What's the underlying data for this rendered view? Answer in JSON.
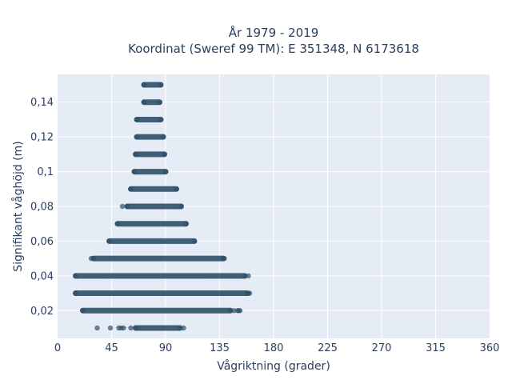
{
  "chart_data": {
    "type": "scatter",
    "title_line1": "År 1979 - 2019",
    "title_line2": "Koordinat (Sweref 99 TM): E 351348, N 6173618",
    "xlabel": "Vågriktning (grader)",
    "ylabel": "Signifikant våghöjd (m)",
    "xlim": [
      0,
      360
    ],
    "ylim": [
      0.004,
      0.156
    ],
    "x_ticks": [
      0,
      45,
      90,
      135,
      180,
      225,
      270,
      315,
      360
    ],
    "x_tick_labels": [
      "0",
      "45",
      "90",
      "135",
      "180",
      "225",
      "270",
      "315",
      "360"
    ],
    "y_ticks": [
      0.02,
      0.04,
      0.06,
      0.08,
      0.1,
      0.12,
      0.14
    ],
    "y_tick_labels": [
      "0,02",
      "0,04",
      "0,06",
      "0,08",
      "0,1",
      "0,12",
      "0,14"
    ],
    "grid": true,
    "plot_bg_color": "#e5ecf6",
    "marker_color": "#2e5068",
    "rows": [
      {
        "y": 0.01,
        "x_min": 65,
        "x_max": 102,
        "outliers": [
          33,
          44,
          51,
          53,
          55,
          61,
          105
        ]
      },
      {
        "y": 0.02,
        "x_min": 21,
        "x_max": 144,
        "outliers": [
          147,
          150,
          151,
          152
        ]
      },
      {
        "y": 0.03,
        "x_min": 15,
        "x_max": 158,
        "outliers": [
          159,
          160
        ]
      },
      {
        "y": 0.04,
        "x_min": 15,
        "x_max": 156,
        "outliers": [
          159
        ]
      },
      {
        "y": 0.05,
        "x_min": 30,
        "x_max": 138,
        "outliers": [
          28,
          139
        ]
      },
      {
        "y": 0.06,
        "x_min": 43,
        "x_max": 114,
        "outliers": []
      },
      {
        "y": 0.07,
        "x_min": 50,
        "x_max": 107,
        "outliers": []
      },
      {
        "y": 0.08,
        "x_min": 58,
        "x_max": 103,
        "outliers": [
          54
        ]
      },
      {
        "y": 0.09,
        "x_min": 61,
        "x_max": 99,
        "outliers": []
      },
      {
        "y": 0.1,
        "x_min": 64,
        "x_max": 90,
        "outliers": []
      },
      {
        "y": 0.11,
        "x_min": 65,
        "x_max": 89,
        "outliers": []
      },
      {
        "y": 0.12,
        "x_min": 66,
        "x_max": 88,
        "outliers": []
      },
      {
        "y": 0.13,
        "x_min": 66,
        "x_max": 86,
        "outliers": []
      },
      {
        "y": 0.14,
        "x_min": 72,
        "x_max": 85,
        "outliers": []
      },
      {
        "y": 0.15,
        "x_min": 72,
        "x_max": 86,
        "outliers": []
      }
    ]
  }
}
